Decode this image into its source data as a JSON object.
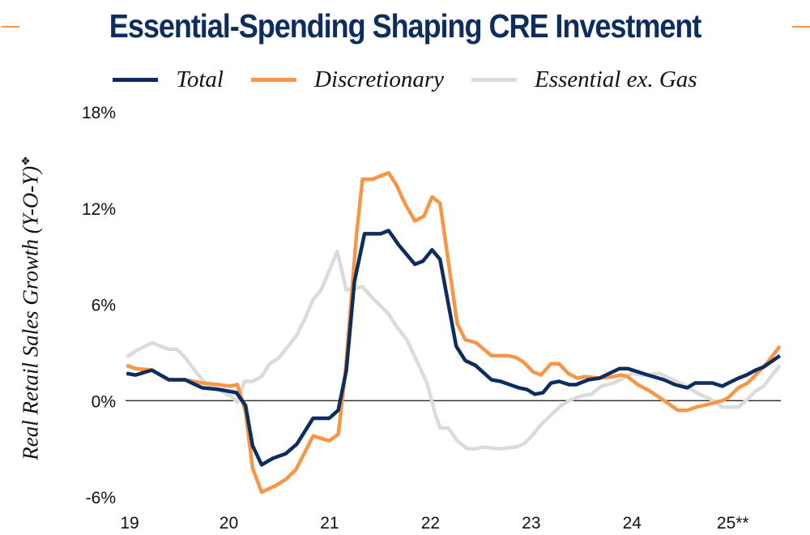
{
  "chart_data": {
    "type": "line",
    "title": "Essential-Spending Shaping CRE Investment",
    "ylabel": "Real Retail Sales Growth (Y-O-Y)",
    "ylabel_symbol": "❖",
    "xlabel": "",
    "ylim": [
      -6,
      18
    ],
    "xlim": [
      2019,
      2025.5
    ],
    "y_ticks": [
      {
        "value": 18,
        "label": "18%"
      },
      {
        "value": 12,
        "label": "12%"
      },
      {
        "value": 6,
        "label": "6%"
      },
      {
        "value": 0,
        "label": "0%"
      },
      {
        "value": -6,
        "label": "-6%"
      }
    ],
    "x_ticks": [
      {
        "value": 2019,
        "label": "19"
      },
      {
        "value": 2020,
        "label": "20"
      },
      {
        "value": 2021,
        "label": "21"
      },
      {
        "value": 2022,
        "label": "22"
      },
      {
        "value": 2023,
        "label": "23"
      },
      {
        "value": 2024,
        "label": "24"
      },
      {
        "value": 2025,
        "label": "25**"
      }
    ],
    "grid": false,
    "zero_line": true,
    "legend_position": "top",
    "series": [
      {
        "name": "Essential ex. Gas",
        "color": "#dadcdc",
        "points": [
          [
            2019.01,
            2.7
          ],
          [
            2019.1,
            3.1
          ],
          [
            2019.26,
            3.6
          ],
          [
            2019.43,
            3.2
          ],
          [
            2019.51,
            3.2
          ],
          [
            2019.59,
            2.7
          ],
          [
            2019.71,
            1.7
          ],
          [
            2019.79,
            1.1
          ],
          [
            2019.95,
            0.6
          ],
          [
            2020.06,
            0.2
          ],
          [
            2020.11,
            -0.1
          ],
          [
            2020.18,
            1.2
          ],
          [
            2020.26,
            1.2
          ],
          [
            2020.35,
            1.5
          ],
          [
            2020.43,
            2.3
          ],
          [
            2020.51,
            2.6
          ],
          [
            2020.59,
            3.2
          ],
          [
            2020.7,
            4.1
          ],
          [
            2020.78,
            5.1
          ],
          [
            2020.86,
            6.3
          ],
          [
            2020.94,
            6.9
          ],
          [
            2021.02,
            8.1
          ],
          [
            2021.1,
            9.3
          ],
          [
            2021.19,
            6.9
          ],
          [
            2021.35,
            7.1
          ],
          [
            2021.45,
            6.4
          ],
          [
            2021.61,
            5.4
          ],
          [
            2021.69,
            4.6
          ],
          [
            2021.79,
            3.8
          ],
          [
            2021.88,
            2.6
          ],
          [
            2021.99,
            1.1
          ],
          [
            2022.08,
            -1.0
          ],
          [
            2022.12,
            -1.7
          ],
          [
            2022.2,
            -1.7
          ],
          [
            2022.29,
            -2.5
          ],
          [
            2022.39,
            -3.0
          ],
          [
            2022.48,
            -3.0
          ],
          [
            2022.55,
            -2.9
          ],
          [
            2022.71,
            -3.0
          ],
          [
            2022.87,
            -2.9
          ],
          [
            2022.95,
            -2.7
          ],
          [
            2023.03,
            -2.2
          ],
          [
            2023.12,
            -1.5
          ],
          [
            2023.22,
            -0.9
          ],
          [
            2023.32,
            -0.3
          ],
          [
            2023.43,
            0.1
          ],
          [
            2023.53,
            0.3
          ],
          [
            2023.62,
            0.4
          ],
          [
            2023.72,
            0.9
          ],
          [
            2023.84,
            1.1
          ],
          [
            2023.94,
            1.4
          ],
          [
            2024.02,
            1.7
          ],
          [
            2024.12,
            1.6
          ],
          [
            2024.29,
            1.7
          ],
          [
            2024.4,
            1.4
          ],
          [
            2024.56,
            0.9
          ],
          [
            2024.69,
            0.4
          ],
          [
            2024.8,
            0.1
          ],
          [
            2024.92,
            -0.4
          ],
          [
            2025.08,
            -0.4
          ],
          [
            2025.17,
            0.1
          ],
          [
            2025.25,
            0.6
          ],
          [
            2025.33,
            0.9
          ],
          [
            2025.49,
            2.2
          ]
        ]
      },
      {
        "name": "Discretionary",
        "color": "#f79646",
        "points": [
          [
            2019.01,
            2.2
          ],
          [
            2019.1,
            2.0
          ],
          [
            2019.26,
            1.9
          ],
          [
            2019.43,
            1.3
          ],
          [
            2019.59,
            1.3
          ],
          [
            2019.76,
            1.1
          ],
          [
            2019.92,
            1.0
          ],
          [
            2020.03,
            0.9
          ],
          [
            2020.11,
            1.0
          ],
          [
            2020.19,
            -0.7
          ],
          [
            2020.26,
            -4.2
          ],
          [
            2020.35,
            -5.7
          ],
          [
            2020.49,
            -5.3
          ],
          [
            2020.59,
            -4.9
          ],
          [
            2020.69,
            -4.3
          ],
          [
            2020.78,
            -3.2
          ],
          [
            2020.86,
            -2.2
          ],
          [
            2021.02,
            -2.5
          ],
          [
            2021.11,
            -2.1
          ],
          [
            2021.18,
            1.7
          ],
          [
            2021.29,
            10.3
          ],
          [
            2021.35,
            13.8
          ],
          [
            2021.45,
            13.8
          ],
          [
            2021.61,
            14.2
          ],
          [
            2021.69,
            13.4
          ],
          [
            2021.77,
            12.3
          ],
          [
            2021.87,
            11.2
          ],
          [
            2021.96,
            11.5
          ],
          [
            2022.04,
            12.7
          ],
          [
            2022.12,
            12.3
          ],
          [
            2022.29,
            4.8
          ],
          [
            2022.37,
            3.8
          ],
          [
            2022.48,
            3.6
          ],
          [
            2022.63,
            2.8
          ],
          [
            2022.79,
            2.8
          ],
          [
            2022.87,
            2.7
          ],
          [
            2022.95,
            2.4
          ],
          [
            2023.04,
            1.8
          ],
          [
            2023.12,
            1.6
          ],
          [
            2023.22,
            2.3
          ],
          [
            2023.3,
            2.3
          ],
          [
            2023.39,
            1.7
          ],
          [
            2023.48,
            1.4
          ],
          [
            2023.56,
            1.5
          ],
          [
            2023.7,
            1.4
          ],
          [
            2023.84,
            1.5
          ],
          [
            2023.92,
            1.6
          ],
          [
            2023.98,
            1.5
          ],
          [
            2024.08,
            1.0
          ],
          [
            2024.2,
            0.6
          ],
          [
            2024.32,
            0.1
          ],
          [
            2024.48,
            -0.6
          ],
          [
            2024.57,
            -0.6
          ],
          [
            2024.66,
            -0.4
          ],
          [
            2024.8,
            -0.2
          ],
          [
            2024.92,
            0.0
          ],
          [
            2024.98,
            0.2
          ],
          [
            2025.08,
            0.8
          ],
          [
            2025.17,
            1.1
          ],
          [
            2025.25,
            1.6
          ],
          [
            2025.37,
            2.4
          ],
          [
            2025.49,
            3.4
          ]
        ]
      },
      {
        "name": "Total",
        "color": "#0d2d5e",
        "points": [
          [
            2019.01,
            1.7
          ],
          [
            2019.1,
            1.6
          ],
          [
            2019.26,
            1.9
          ],
          [
            2019.43,
            1.3
          ],
          [
            2019.59,
            1.3
          ],
          [
            2019.76,
            0.8
          ],
          [
            2019.92,
            0.7
          ],
          [
            2020.1,
            0.5
          ],
          [
            2020.19,
            -0.3
          ],
          [
            2020.26,
            -2.8
          ],
          [
            2020.35,
            -4.0
          ],
          [
            2020.46,
            -3.6
          ],
          [
            2020.59,
            -3.3
          ],
          [
            2020.7,
            -2.7
          ],
          [
            2020.86,
            -1.1
          ],
          [
            2021.02,
            -1.1
          ],
          [
            2021.11,
            -0.6
          ],
          [
            2021.19,
            1.9
          ],
          [
            2021.27,
            7.4
          ],
          [
            2021.37,
            10.4
          ],
          [
            2021.53,
            10.4
          ],
          [
            2021.61,
            10.6
          ],
          [
            2021.71,
            9.7
          ],
          [
            2021.87,
            8.5
          ],
          [
            2021.95,
            8.7
          ],
          [
            2022.04,
            9.4
          ],
          [
            2022.12,
            8.8
          ],
          [
            2022.28,
            3.4
          ],
          [
            2022.37,
            2.5
          ],
          [
            2022.47,
            2.2
          ],
          [
            2022.63,
            1.3
          ],
          [
            2022.72,
            1.2
          ],
          [
            2022.9,
            0.8
          ],
          [
            2022.98,
            0.7
          ],
          [
            2023.06,
            0.4
          ],
          [
            2023.14,
            0.5
          ],
          [
            2023.22,
            1.1
          ],
          [
            2023.3,
            1.2
          ],
          [
            2023.4,
            1.0
          ],
          [
            2023.47,
            1.0
          ],
          [
            2023.59,
            1.3
          ],
          [
            2023.7,
            1.4
          ],
          [
            2023.8,
            1.7
          ],
          [
            2023.9,
            2.0
          ],
          [
            2023.98,
            2.0
          ],
          [
            2024.08,
            1.8
          ],
          [
            2024.18,
            1.6
          ],
          [
            2024.34,
            1.3
          ],
          [
            2024.45,
            1.0
          ],
          [
            2024.57,
            0.8
          ],
          [
            2024.65,
            1.1
          ],
          [
            2024.82,
            1.1
          ],
          [
            2024.92,
            0.9
          ],
          [
            2024.98,
            1.1
          ],
          [
            2025.08,
            1.4
          ],
          [
            2025.16,
            1.6
          ],
          [
            2025.25,
            1.9
          ],
          [
            2025.33,
            2.1
          ],
          [
            2025.49,
            2.8
          ]
        ]
      }
    ]
  },
  "legend": [
    {
      "label": "Total",
      "color": "#0d2d5e"
    },
    {
      "label": "Discretionary",
      "color": "#f79646"
    },
    {
      "label": "Essential ex. Gas",
      "color": "#dadcdc"
    }
  ]
}
